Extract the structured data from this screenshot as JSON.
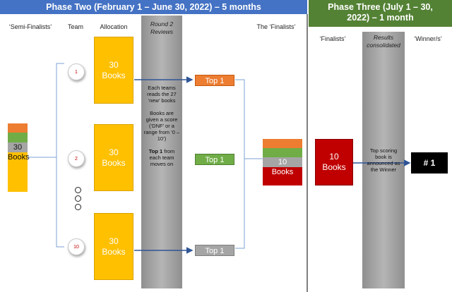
{
  "phase_two": {
    "title": "Phase Two (February 1 – June 30, 2022) – 5 months",
    "color": "#4472C4"
  },
  "phase_three": {
    "title": "Phase Three (July 1 – 30, 2022) – 1 month",
    "color": "#548235"
  },
  "labels": {
    "semi_finalists": "‘Semi-Finalists’",
    "team": "Team",
    "allocation": "Allocation",
    "round2": "Round 2 Reviews",
    "the_finalists": "The ‘Finalists’",
    "finalists": "‘Finalists’",
    "results": "Results consolidated",
    "winner": "‘Winner/s’"
  },
  "semi_stack": {
    "count": "30",
    "unit": "Books"
  },
  "teams": [
    {
      "number": "1",
      "books": "30",
      "unit": "Books",
      "result": "Top 1",
      "result_color": "#ED7D31"
    },
    {
      "number": "2",
      "books": "30",
      "unit": "Books",
      "result": "Top 1",
      "result_color": "#70AD47"
    },
    {
      "number": "10",
      "books": "30",
      "unit": "Books",
      "result": "Top 1",
      "result_color": "#A5A5A5"
    }
  ],
  "round2_text": {
    "p1": "Each teams reads the 27 ‘new’ books",
    "p2": "Books are given a score (‘DNF’ or a range from ‘0 – 10’)",
    "p3_bold": "Top 1",
    "p3_rest": " from each team moves on"
  },
  "finalists_stack": {
    "count": "10",
    "unit": "Books"
  },
  "phase3_box": {
    "count": "10",
    "unit": "Books"
  },
  "results_text": "Top scoring book is announced as the Winner",
  "winner_box": "# 1",
  "colors": {
    "orange": "#ED7D31",
    "green": "#70AD47",
    "grey": "#A5A5A5",
    "red": "#C00000",
    "gold": "#FFC000",
    "arrow": "#2F5597"
  }
}
